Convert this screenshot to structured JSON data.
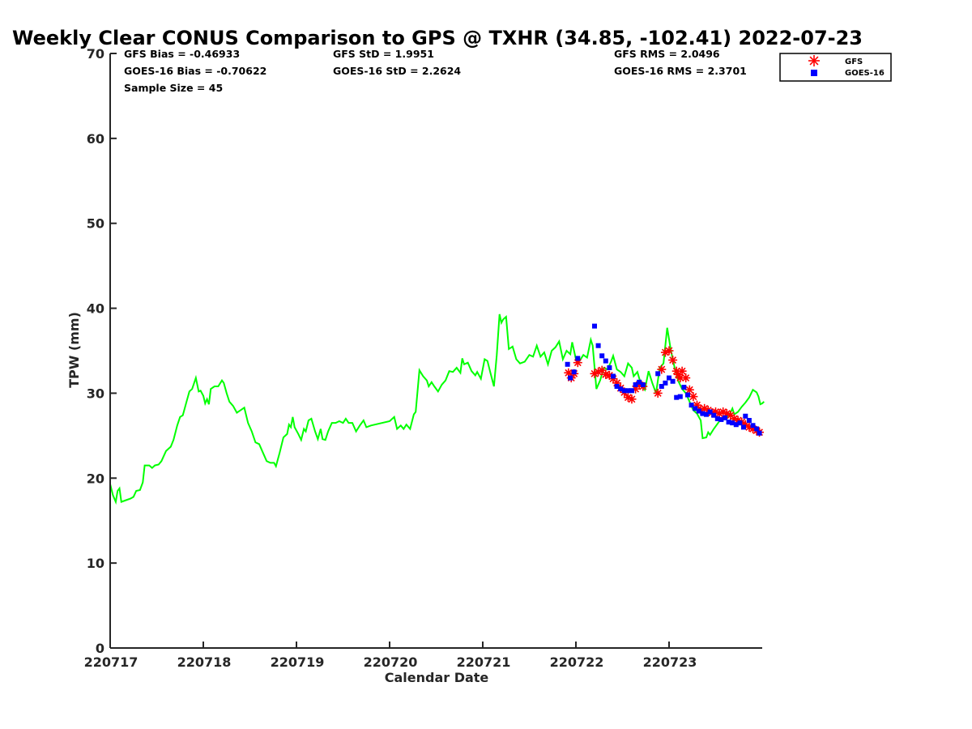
{
  "chart_data": {
    "type": "line",
    "title": "Weekly Clear CONUS Comparison to GPS @ TXHR (34.85, -102.41) 2022-07-23",
    "xlabel": "Calendar Date",
    "ylabel": "TPW (mm)",
    "xlim": [
      0,
      7
    ],
    "ylim": [
      0,
      70
    ],
    "x_ticks": [
      {
        "x": 0,
        "label": "220717"
      },
      {
        "x": 1,
        "label": "220718"
      },
      {
        "x": 2,
        "label": "220719"
      },
      {
        "x": 3,
        "label": "220720"
      },
      {
        "x": 4,
        "label": "220721"
      },
      {
        "x": 5,
        "label": "220722"
      },
      {
        "x": 6,
        "label": "220723"
      }
    ],
    "y_ticks": [
      {
        "y": 0,
        "label": "0"
      },
      {
        "y": 10,
        "label": "10"
      },
      {
        "y": 20,
        "label": "20"
      },
      {
        "y": 30,
        "label": "30"
      },
      {
        "y": 40,
        "label": "40"
      },
      {
        "y": 50,
        "label": "50"
      },
      {
        "y": 60,
        "label": "60"
      },
      {
        "y": 70,
        "label": "70"
      }
    ],
    "grid": false,
    "legend_position": "top-right",
    "stats": {
      "gfs_bias": "GFS Bias = -0.46933",
      "goes_bias": "GOES-16 Bias = -0.70622",
      "sample_size": "Sample Size = 45",
      "gfs_std": "GFS StD = 1.9951",
      "goes_std": "GOES-16 StD = 2.2624",
      "gfs_rms": "GFS RMS = 2.0496",
      "goes_rms": "GOES-16 RMS = 2.3701"
    },
    "series": [
      {
        "name": "",
        "kind": "line",
        "color": "#00ff00",
        "points": [
          [
            0.0,
            19.3
          ],
          [
            0.03,
            18.0
          ],
          [
            0.06,
            17.2
          ],
          [
            0.08,
            18.5
          ],
          [
            0.1,
            18.8
          ],
          [
            0.12,
            17.2
          ],
          [
            0.17,
            17.4
          ],
          [
            0.22,
            17.6
          ],
          [
            0.25,
            17.8
          ],
          [
            0.28,
            18.5
          ],
          [
            0.32,
            18.6
          ],
          [
            0.35,
            19.5
          ],
          [
            0.37,
            21.5
          ],
          [
            0.42,
            21.5
          ],
          [
            0.45,
            21.2
          ],
          [
            0.48,
            21.5
          ],
          [
            0.52,
            21.6
          ],
          [
            0.55,
            22.0
          ],
          [
            0.6,
            23.2
          ],
          [
            0.65,
            23.7
          ],
          [
            0.68,
            24.5
          ],
          [
            0.72,
            26.2
          ],
          [
            0.75,
            27.2
          ],
          [
            0.78,
            27.4
          ],
          [
            0.82,
            29.0
          ],
          [
            0.85,
            30.2
          ],
          [
            0.88,
            30.5
          ],
          [
            0.92,
            31.8
          ],
          [
            0.95,
            30.2
          ],
          [
            0.97,
            30.3
          ],
          [
            1.0,
            29.7
          ],
          [
            1.02,
            28.8
          ],
          [
            1.04,
            29.3
          ],
          [
            1.06,
            28.7
          ],
          [
            1.08,
            30.5
          ],
          [
            1.12,
            30.8
          ],
          [
            1.16,
            30.8
          ],
          [
            1.2,
            31.5
          ],
          [
            1.22,
            31.2
          ],
          [
            1.25,
            30.0
          ],
          [
            1.28,
            29.0
          ],
          [
            1.32,
            28.5
          ],
          [
            1.36,
            27.7
          ],
          [
            1.4,
            28.0
          ],
          [
            1.44,
            28.3
          ],
          [
            1.48,
            26.5
          ],
          [
            1.52,
            25.5
          ],
          [
            1.56,
            24.2
          ],
          [
            1.6,
            24.0
          ],
          [
            1.64,
            23.0
          ],
          [
            1.68,
            22.0
          ],
          [
            1.72,
            21.8
          ],
          [
            1.76,
            21.8
          ],
          [
            1.78,
            21.4
          ],
          [
            1.82,
            23.0
          ],
          [
            1.86,
            24.8
          ],
          [
            1.9,
            25.2
          ],
          [
            1.92,
            26.3
          ],
          [
            1.94,
            26.0
          ],
          [
            1.96,
            27.2
          ],
          [
            1.98,
            26.0
          ],
          [
            2.02,
            25.2
          ],
          [
            2.05,
            24.5
          ],
          [
            2.08,
            25.8
          ],
          [
            2.1,
            25.5
          ],
          [
            2.13,
            26.8
          ],
          [
            2.16,
            27.0
          ],
          [
            2.2,
            25.5
          ],
          [
            2.23,
            24.6
          ],
          [
            2.26,
            25.8
          ],
          [
            2.28,
            24.6
          ],
          [
            2.31,
            24.5
          ],
          [
            2.34,
            25.5
          ],
          [
            2.38,
            26.5
          ],
          [
            2.42,
            26.5
          ],
          [
            2.46,
            26.7
          ],
          [
            2.5,
            26.5
          ],
          [
            2.53,
            27.0
          ],
          [
            2.56,
            26.5
          ],
          [
            2.6,
            26.5
          ],
          [
            2.64,
            25.5
          ],
          [
            2.68,
            26.2
          ],
          [
            2.72,
            26.8
          ],
          [
            2.75,
            26.0
          ],
          [
            2.8,
            26.2
          ],
          [
            3.0,
            26.7
          ],
          [
            3.05,
            27.2
          ],
          [
            3.08,
            25.8
          ],
          [
            3.12,
            26.2
          ],
          [
            3.15,
            25.8
          ],
          [
            3.18,
            26.3
          ],
          [
            3.22,
            25.8
          ],
          [
            3.26,
            27.5
          ],
          [
            3.28,
            27.8
          ],
          [
            3.32,
            32.7
          ],
          [
            3.36,
            32.0
          ],
          [
            3.4,
            31.5
          ],
          [
            3.42,
            30.8
          ],
          [
            3.45,
            31.3
          ],
          [
            3.48,
            30.8
          ],
          [
            3.52,
            30.2
          ],
          [
            3.56,
            31.0
          ],
          [
            3.6,
            31.5
          ],
          [
            3.64,
            32.6
          ],
          [
            3.68,
            32.5
          ],
          [
            3.72,
            33.0
          ],
          [
            3.76,
            32.4
          ],
          [
            3.78,
            34.1
          ],
          [
            3.8,
            33.4
          ],
          [
            3.84,
            33.6
          ],
          [
            3.88,
            32.6
          ],
          [
            3.92,
            32.1
          ],
          [
            3.94,
            32.5
          ],
          [
            3.98,
            31.7
          ],
          [
            4.02,
            34.0
          ],
          [
            4.05,
            33.8
          ],
          [
            4.08,
            32.5
          ],
          [
            4.12,
            30.8
          ],
          [
            4.15,
            34.5
          ],
          [
            4.18,
            39.3
          ],
          [
            4.2,
            38.3
          ],
          [
            4.22,
            38.7
          ],
          [
            4.25,
            39.0
          ],
          [
            4.28,
            35.2
          ],
          [
            4.32,
            35.5
          ],
          [
            4.36,
            34.0
          ],
          [
            4.4,
            33.5
          ],
          [
            4.45,
            33.7
          ],
          [
            4.5,
            34.5
          ],
          [
            4.54,
            34.3
          ],
          [
            4.58,
            35.6
          ],
          [
            4.62,
            34.3
          ],
          [
            4.66,
            34.8
          ],
          [
            4.7,
            33.4
          ],
          [
            4.74,
            35.0
          ],
          [
            4.78,
            35.4
          ],
          [
            4.82,
            36.1
          ],
          [
            4.86,
            34.0
          ],
          [
            4.9,
            35.0
          ],
          [
            4.94,
            34.6
          ],
          [
            4.96,
            36.0
          ],
          [
            5.0,
            34.0
          ],
          [
            5.04,
            33.8
          ],
          [
            5.08,
            34.5
          ],
          [
            5.12,
            34.2
          ],
          [
            5.16,
            36.3
          ],
          [
            5.18,
            35.6
          ],
          [
            5.22,
            30.5
          ],
          [
            5.26,
            31.5
          ],
          [
            5.3,
            33.0
          ],
          [
            5.34,
            32.8
          ],
          [
            5.38,
            33.8
          ],
          [
            5.4,
            34.4
          ],
          [
            5.44,
            32.8
          ],
          [
            5.48,
            32.5
          ],
          [
            5.52,
            32.0
          ],
          [
            5.56,
            33.5
          ],
          [
            5.6,
            33.0
          ],
          [
            5.62,
            32.0
          ],
          [
            5.66,
            32.5
          ],
          [
            5.7,
            31.0
          ],
          [
            5.74,
            30.4
          ],
          [
            5.78,
            32.6
          ],
          [
            5.82,
            31.2
          ],
          [
            5.86,
            30.0
          ],
          [
            5.9,
            33.0
          ],
          [
            5.94,
            33.5
          ],
          [
            5.98,
            37.7
          ],
          [
            6.02,
            35.0
          ],
          [
            6.06,
            33.0
          ],
          [
            6.1,
            31.4
          ],
          [
            6.14,
            30.5
          ],
          [
            6.18,
            30.0
          ],
          [
            6.22,
            29.0
          ],
          [
            6.26,
            28.0
          ],
          [
            6.3,
            27.6
          ],
          [
            6.34,
            26.8
          ],
          [
            6.36,
            24.7
          ],
          [
            6.4,
            24.8
          ],
          [
            6.42,
            25.4
          ],
          [
            6.44,
            25.1
          ],
          [
            6.48,
            25.8
          ],
          [
            6.52,
            26.4
          ],
          [
            6.56,
            27.0
          ],
          [
            6.6,
            27.1
          ],
          [
            6.64,
            27.3
          ],
          [
            6.68,
            28.2
          ],
          [
            6.7,
            27.5
          ],
          [
            6.74,
            27.8
          ],
          [
            6.78,
            28.4
          ],
          [
            6.82,
            28.9
          ],
          [
            6.86,
            29.5
          ],
          [
            6.9,
            30.4
          ],
          [
            6.94,
            30.1
          ],
          [
            6.96,
            29.6
          ],
          [
            6.98,
            28.7
          ],
          [
            7.0,
            28.8
          ],
          [
            7.02,
            29.0
          ]
        ]
      },
      {
        "name": "GFS",
        "kind": "marker",
        "marker": "asterisk",
        "color": "#ff0000",
        "points": [
          [
            4.92,
            32.4
          ],
          [
            4.95,
            31.8
          ],
          [
            4.98,
            32.3
          ],
          [
            5.02,
            33.6
          ],
          [
            5.2,
            32.3
          ],
          [
            5.24,
            32.5
          ],
          [
            5.28,
            32.7
          ],
          [
            5.32,
            32.2
          ],
          [
            5.36,
            32.1
          ],
          [
            5.4,
            31.7
          ],
          [
            5.44,
            31.2
          ],
          [
            5.48,
            30.6
          ],
          [
            5.52,
            30.1
          ],
          [
            5.56,
            29.5
          ],
          [
            5.6,
            29.3
          ],
          [
            5.64,
            30.5
          ],
          [
            5.68,
            31.0
          ],
          [
            5.72,
            30.8
          ],
          [
            5.88,
            30.0
          ],
          [
            5.92,
            32.8
          ],
          [
            5.96,
            34.8
          ],
          [
            6.0,
            35.0
          ],
          [
            6.04,
            33.9
          ],
          [
            6.08,
            32.6
          ],
          [
            6.1,
            32.2
          ],
          [
            6.12,
            31.8
          ],
          [
            6.14,
            32.6
          ],
          [
            6.18,
            31.8
          ],
          [
            6.22,
            30.4
          ],
          [
            6.26,
            29.6
          ],
          [
            6.3,
            28.6
          ],
          [
            6.34,
            28.0
          ],
          [
            6.38,
            28.2
          ],
          [
            6.42,
            28.0
          ],
          [
            6.46,
            27.7
          ],
          [
            6.5,
            27.8
          ],
          [
            6.54,
            27.6
          ],
          [
            6.58,
            27.8
          ],
          [
            6.62,
            27.6
          ],
          [
            6.66,
            27.4
          ],
          [
            6.7,
            27.0
          ],
          [
            6.74,
            26.8
          ],
          [
            6.78,
            26.6
          ],
          [
            6.82,
            26.3
          ],
          [
            6.86,
            26.0
          ],
          [
            6.9,
            25.8
          ],
          [
            6.94,
            25.6
          ],
          [
            6.97,
            25.4
          ]
        ]
      },
      {
        "name": "GOES-16",
        "kind": "marker",
        "marker": "square",
        "color": "#0000ff",
        "points": [
          [
            4.91,
            33.4
          ],
          [
            4.94,
            31.8
          ],
          [
            4.98,
            32.5
          ],
          [
            5.02,
            34.1
          ],
          [
            5.2,
            37.9
          ],
          [
            5.24,
            35.6
          ],
          [
            5.28,
            34.4
          ],
          [
            5.32,
            33.8
          ],
          [
            5.36,
            33.0
          ],
          [
            5.4,
            32.0
          ],
          [
            5.44,
            30.8
          ],
          [
            5.48,
            30.5
          ],
          [
            5.52,
            30.3
          ],
          [
            5.56,
            30.3
          ],
          [
            5.6,
            30.3
          ],
          [
            5.64,
            31.0
          ],
          [
            5.68,
            31.3
          ],
          [
            5.72,
            31.0
          ],
          [
            5.88,
            32.3
          ],
          [
            5.92,
            30.8
          ],
          [
            5.96,
            31.2
          ],
          [
            6.0,
            31.8
          ],
          [
            6.04,
            31.4
          ],
          [
            6.08,
            29.5
          ],
          [
            6.12,
            29.6
          ],
          [
            6.16,
            30.7
          ],
          [
            6.2,
            29.8
          ],
          [
            6.24,
            28.6
          ],
          [
            6.28,
            28.2
          ],
          [
            6.32,
            27.9
          ],
          [
            6.36,
            27.6
          ],
          [
            6.4,
            27.5
          ],
          [
            6.44,
            27.8
          ],
          [
            6.48,
            27.4
          ],
          [
            6.52,
            27.0
          ],
          [
            6.56,
            26.9
          ],
          [
            6.6,
            27.1
          ],
          [
            6.64,
            26.6
          ],
          [
            6.68,
            26.5
          ],
          [
            6.72,
            26.3
          ],
          [
            6.76,
            26.5
          ],
          [
            6.8,
            26.0
          ],
          [
            6.82,
            27.3
          ],
          [
            6.86,
            26.8
          ],
          [
            6.9,
            26.2
          ],
          [
            6.94,
            25.8
          ],
          [
            6.97,
            25.3
          ]
        ]
      }
    ]
  }
}
